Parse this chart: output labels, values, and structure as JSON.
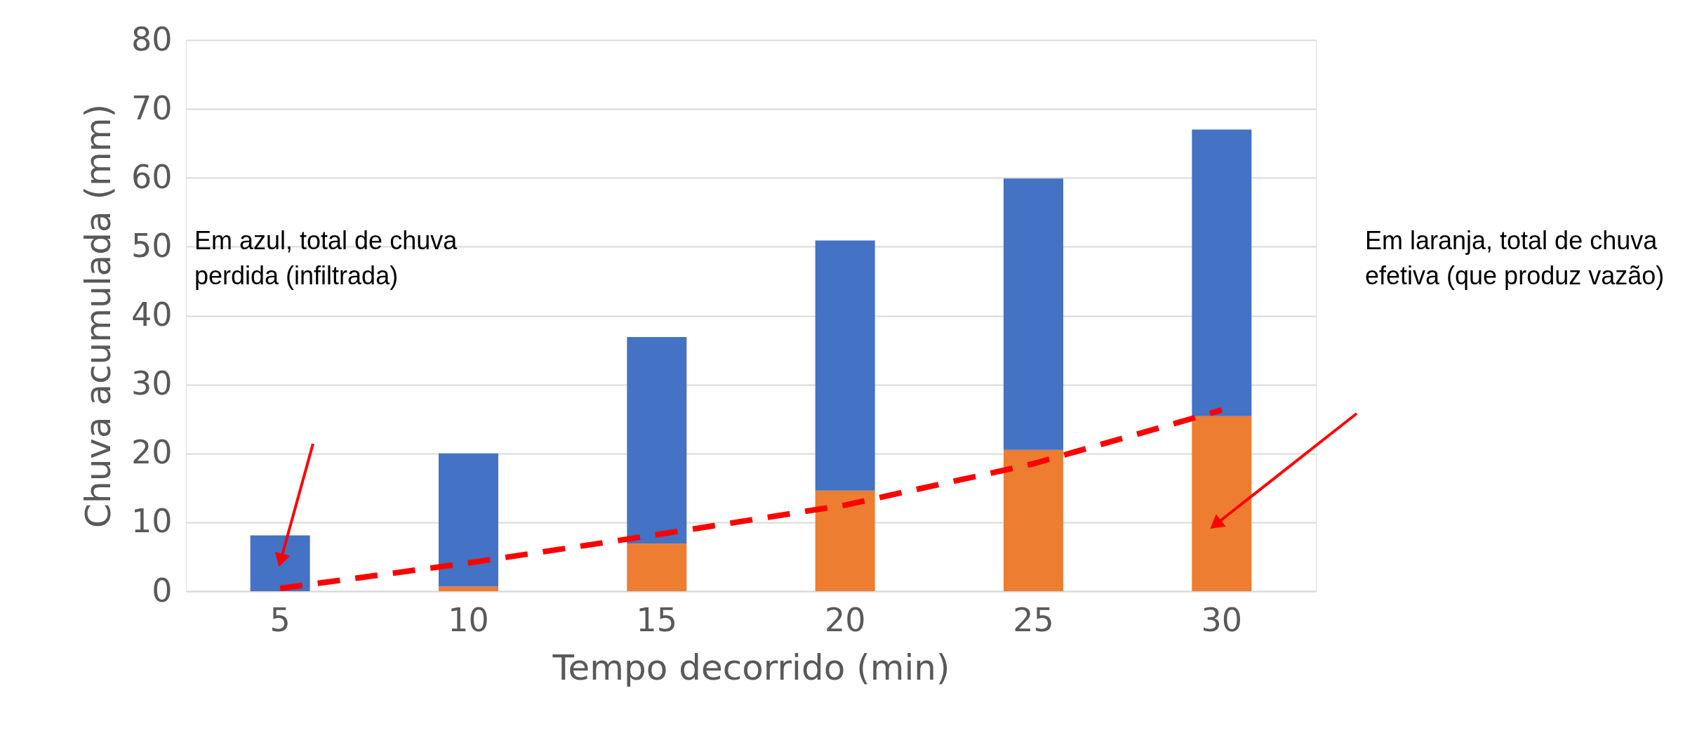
{
  "chart_data": {
    "type": "bar",
    "stacked": true,
    "categories": [
      "5",
      "10",
      "15",
      "20",
      "25",
      "30"
    ],
    "xlabel": "Tempo decorrido (min)",
    "ylabel": "Chuva acumulada (mm)",
    "series": [
      {
        "color": "#ed7d31",
        "values": [
          0,
          0.7,
          6.9,
          14.6,
          20.5,
          25.4
        ]
      },
      {
        "color": "#4472c4",
        "values": [
          8.1,
          19.3,
          30.0,
          36.3,
          39.4,
          41.6
        ]
      },
      {
        "type": "line",
        "color": "#ff0000",
        "line_style": "dashed",
        "x": [
          "5",
          "10",
          "15",
          "20",
          "25",
          "30"
        ],
        "values": [
          0.4,
          4.1,
          8.2,
          12.5,
          18.5,
          26.3
        ]
      }
    ],
    "ylim": [
      0,
      80
    ],
    "yticks": [
      0,
      10,
      20,
      30,
      40,
      50,
      60,
      70,
      80
    ],
    "grid": "y",
    "annotations": [
      "Em azul, total de chuva\nperdida (infiltrada)",
      "Em laranja, total de chuva\nefetiva (que produz vazão)"
    ]
  }
}
